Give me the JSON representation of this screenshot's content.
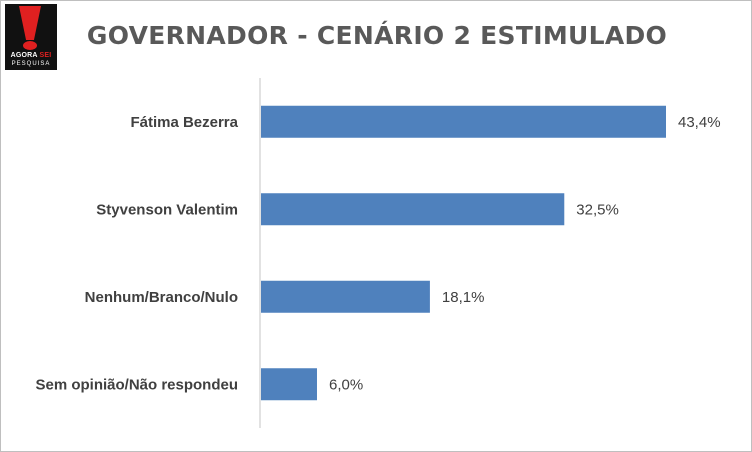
{
  "logo": {
    "line1_a": "AGORA",
    "line1_b": "SEI",
    "line2": "PESQUISA"
  },
  "chart_data": {
    "type": "bar",
    "orientation": "horizontal",
    "title": "GOVERNADOR - CENÁRIO 2 ESTIMULADO",
    "categories": [
      "Fátima Bezerra",
      "Styvenson Valentim",
      "Nenhum/Branco/Nulo",
      "Sem opinião/Não respondeu"
    ],
    "values": [
      43.4,
      32.5,
      18.1,
      6.0
    ],
    "labels": [
      "43,4%",
      "32,5%",
      "18,1%",
      "6,0%"
    ],
    "xlim": [
      0,
      50
    ],
    "bar_color": "#4f81bd",
    "axis_color": "#d9d9d9",
    "label_color": "#404040",
    "grid": false,
    "legend": "none"
  }
}
